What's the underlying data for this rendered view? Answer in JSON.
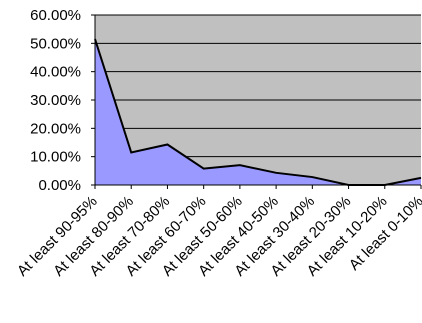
{
  "chart_data": {
    "type": "area",
    "categories": [
      "At least 90-95%",
      "At least 80-90%",
      "At least 70-80%",
      "At least 60-70%",
      "At least 50-60%",
      "At least 40-50%",
      "At least 30-40%",
      "At least 20-30%",
      "At least 10-20%",
      "At least 0-10%"
    ],
    "series": [
      {
        "values": [
          51.5,
          11.5,
          14.3,
          5.8,
          7.0,
          4.3,
          2.8,
          0.0,
          0.0,
          2.5
        ]
      }
    ],
    "y_ticks": [
      "0.00%",
      "10.00%",
      "20.00%",
      "30.00%",
      "40.00%",
      "50.00%",
      "60.00%"
    ],
    "ylim": [
      0,
      60
    ],
    "grid": true,
    "legend": "none",
    "colors": {
      "plot_background": "#c0c0c0",
      "area_fill": "#9999ff",
      "line": "#000000",
      "gridline": "#000000"
    }
  }
}
